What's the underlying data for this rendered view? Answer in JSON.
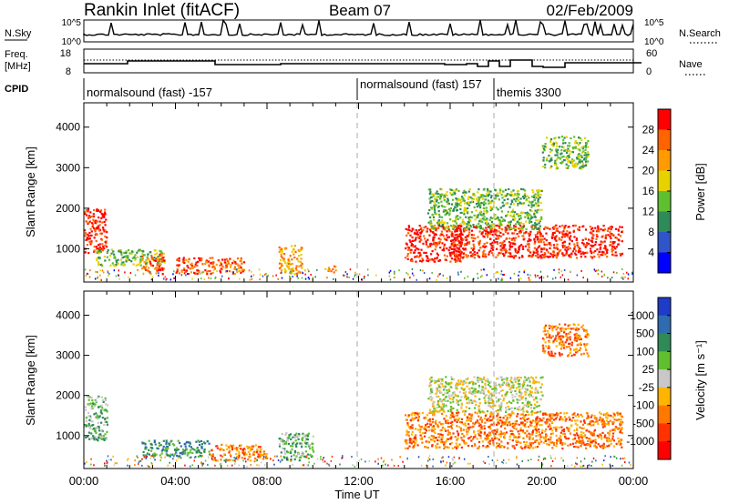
{
  "header": {
    "title": "Rankin Inlet (fitACF)",
    "beam": "Beam 07",
    "date": "02/Feb/2009"
  },
  "top_panels": {
    "nsky_label": "N.Sky",
    "nsky_ticks": [
      "10^5",
      "10^0"
    ],
    "nsearch_label": "N.Search",
    "nsearch_ticks": [
      "10^5",
      "10^0"
    ],
    "freq_label_line1": "Freq.",
    "freq_label_line2": "[MHz]",
    "freq_ticks": [
      "18",
      "8"
    ],
    "nave_label": "Nave",
    "nave_ticks": [
      "60",
      "0"
    ],
    "cpid_label": "CPID",
    "cpid_segments": [
      {
        "label": "normalsound (fast) -157",
        "start_hour": 0
      },
      {
        "label": "normalsound (fast) 157",
        "start_hour": 12
      },
      {
        "label": "themis 3300",
        "start_hour": 18
      }
    ]
  },
  "chart_data": [
    {
      "type": "heatmap",
      "title": "Power",
      "xlabel": "Time UT",
      "ylabel": "Slant Range [km]",
      "xlim_hours": [
        0,
        24
      ],
      "x_ticks": [
        "00:00",
        "04:00",
        "08:00",
        "12:00",
        "16:00",
        "20:00",
        "00:00"
      ],
      "ylim_km": [
        180,
        4600
      ],
      "y_ticks": [
        1000,
        2000,
        3000,
        4000
      ],
      "colorbar_label": "Power [dB]",
      "colorbar_ticks": [
        "4",
        "8",
        "12",
        "16",
        "20",
        "24",
        "28"
      ],
      "colors": [
        "#0000ff",
        "#2f55c8",
        "#2e8b57",
        "#5fbf2f",
        "#e6d200",
        "#ff9b00",
        "#ff6400",
        "#ff0000"
      ],
      "echo_regions": [
        {
          "t_start": 0.0,
          "t_end": 1.0,
          "r_low": 900,
          "r_high": 2000,
          "level": 7
        },
        {
          "t_start": 0.5,
          "t_end": 3.5,
          "r_low": 600,
          "r_high": 1000,
          "level": 3
        },
        {
          "t_start": 2.5,
          "t_end": 3.5,
          "r_low": 400,
          "r_high": 900,
          "level": 6
        },
        {
          "t_start": 4.0,
          "t_end": 7.0,
          "r_low": 400,
          "r_high": 800,
          "level": 6
        },
        {
          "t_start": 8.5,
          "t_end": 9.5,
          "r_low": 400,
          "r_high": 1100,
          "level": 5
        },
        {
          "t_start": 10.5,
          "t_end": 11.0,
          "r_low": 400,
          "r_high": 600,
          "level": 5
        },
        {
          "t_start": 14.0,
          "t_end": 16.5,
          "r_low": 700,
          "r_high": 1600,
          "level": 7
        },
        {
          "t_start": 16.0,
          "t_end": 23.5,
          "r_low": 800,
          "r_high": 1600,
          "level": 7
        },
        {
          "t_start": 15.0,
          "t_end": 20.0,
          "r_low": 1500,
          "r_high": 2500,
          "level": 3
        },
        {
          "t_start": 20.0,
          "t_end": 22.0,
          "r_low": 3000,
          "r_high": 3800,
          "level": 3
        }
      ]
    },
    {
      "type": "heatmap",
      "title": "Velocity",
      "xlabel": "Time UT",
      "ylabel": "Slant Range [km]",
      "xlim_hours": [
        0,
        24
      ],
      "x_ticks": [
        "00:00",
        "04:00",
        "08:00",
        "12:00",
        "16:00",
        "20:00",
        "00:00"
      ],
      "ylim_km": [
        180,
        4600
      ],
      "y_ticks": [
        1000,
        2000,
        3000,
        4000
      ],
      "colorbar_label": "Velocity [m s⁻¹]",
      "colorbar_ticks": [
        "1000",
        "500",
        "100",
        "25",
        "-25",
        "-100",
        "-500",
        "-1000"
      ],
      "colors": [
        "#1e3cc8",
        "#2e6bb0",
        "#2e8b57",
        "#5fbf2f",
        "#c8c8c8",
        "#ffb400",
        "#ff7800",
        "#ff3200",
        "#ff0000"
      ],
      "echo_regions": [
        {
          "t_start": 0.0,
          "t_end": 1.0,
          "r_low": 900,
          "r_high": 2000,
          "level": 3
        },
        {
          "t_start": 2.5,
          "t_end": 5.5,
          "r_low": 500,
          "r_high": 900,
          "level": 2
        },
        {
          "t_start": 5.5,
          "t_end": 8.0,
          "r_low": 400,
          "r_high": 800,
          "level": 6
        },
        {
          "t_start": 8.5,
          "t_end": 10.0,
          "r_low": 400,
          "r_high": 1100,
          "level": 3
        },
        {
          "t_start": 14.0,
          "t_end": 23.5,
          "r_low": 700,
          "r_high": 1600,
          "level": 6
        },
        {
          "t_start": 15.0,
          "t_end": 20.0,
          "r_low": 1600,
          "r_high": 2500,
          "level": 4
        },
        {
          "t_start": 20.0,
          "t_end": 22.0,
          "r_low": 3000,
          "r_high": 3800,
          "level": 6
        }
      ]
    }
  ]
}
